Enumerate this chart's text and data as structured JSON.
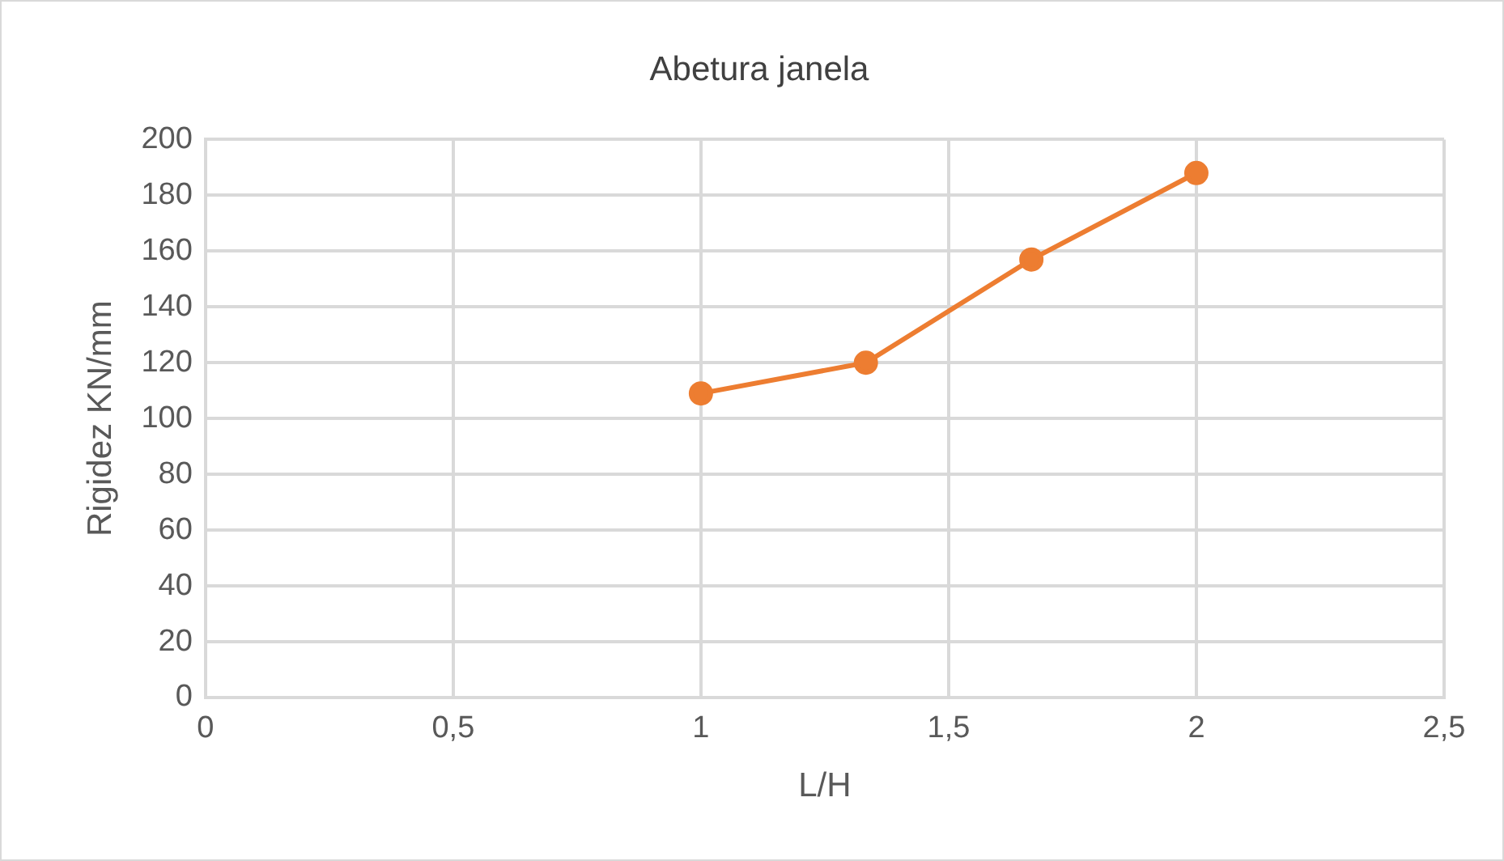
{
  "chart_data": {
    "type": "line",
    "title": "Abetura janela",
    "xlabel": "L/H",
    "ylabel": "Rigidez KN/mm",
    "x": [
      1,
      1.333,
      1.667,
      2
    ],
    "series": [
      {
        "color": "#ed7d31",
        "values": [
          109,
          120,
          157,
          188
        ]
      }
    ],
    "xlim": [
      0,
      2.5
    ],
    "xticks": [
      0,
      {
        "value": 0.5,
        "label": "0,5"
      },
      1,
      {
        "value": 1.5,
        "label": "1,5"
      },
      2,
      {
        "value": 2.5,
        "label": "2,5"
      }
    ],
    "ylim": [
      0,
      200
    ],
    "yticks": [
      0,
      20,
      40,
      60,
      80,
      100,
      120,
      140,
      160,
      180,
      200
    ],
    "grid": true,
    "marker": "circle",
    "line_style": "solid",
    "legend": false
  }
}
